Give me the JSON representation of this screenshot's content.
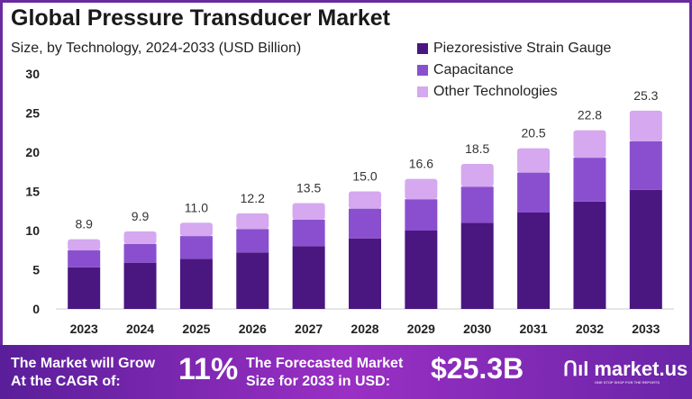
{
  "chart_data": {
    "type": "bar",
    "stacked": true,
    "title": "Global Pressure Transducer Market",
    "subtitle": "Size, by Technology, 2024-2033 (USD Billion)",
    "categories": [
      "2023",
      "2024",
      "2025",
      "2026",
      "2027",
      "2028",
      "2029",
      "2030",
      "2031",
      "2032",
      "2033"
    ],
    "series": [
      {
        "name": "Piezoresistive Strain Gauge",
        "color": "#4a1680",
        "values": [
          5.3,
          5.9,
          6.4,
          7.2,
          8.0,
          9.0,
          10.0,
          11.0,
          12.3,
          13.7,
          15.2
        ]
      },
      {
        "name": "Capacitance",
        "color": "#8a4fcf",
        "values": [
          2.2,
          2.4,
          2.9,
          3.0,
          3.4,
          3.8,
          4.0,
          4.6,
          5.1,
          5.6,
          6.2
        ]
      },
      {
        "name": "Other Technologies",
        "color": "#d5a8ef",
        "values": [
          1.4,
          1.6,
          1.7,
          2.0,
          2.1,
          2.2,
          2.6,
          2.9,
          3.1,
          3.5,
          3.9
        ]
      }
    ],
    "totals": [
      "8.9",
      "9.9",
      "11.0",
      "12.2",
      "13.5",
      "15.0",
      "16.6",
      "18.5",
      "20.5",
      "22.8",
      "25.3"
    ],
    "yticks": [
      "0",
      "5",
      "10",
      "15",
      "20",
      "25",
      "30"
    ],
    "ylim": [
      0,
      30
    ],
    "grid": false,
    "legend": "top-right"
  },
  "footer": {
    "cagr_label_1": "The Market will Grow",
    "cagr_label_2": "At the CAGR of:",
    "cagr": "11%",
    "forecast_label_1": "The Forecasted Market",
    "forecast_label_2": "Size for 2033 in USD:",
    "forecast": "$25.3B",
    "brand": "market.us",
    "tagline": "ONE STOP SHOP FOR THE REPORTS"
  }
}
